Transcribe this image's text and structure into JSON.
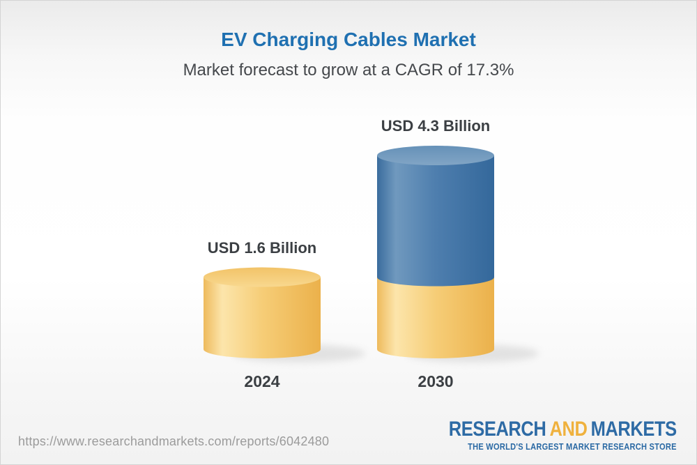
{
  "header": {
    "title": "EV Charging Cables Market",
    "subtitle": "Market forecast to grow at a CAGR of 17.3%"
  },
  "chart_data": {
    "type": "bar",
    "variant": "3d-cylinder",
    "title": "EV Charging Cables Market",
    "subtitle": "Market forecast to grow at a CAGR of 17.3%",
    "cagr_percent": 17.3,
    "unit": "USD Billion",
    "categories": [
      "2024",
      "2030"
    ],
    "values": [
      1.6,
      4.3
    ],
    "ylim": [
      0,
      4.3
    ],
    "grid": false,
    "legend": false,
    "bars": [
      {
        "category": "2024",
        "total": 1.6,
        "label": "USD 1.6 Billion",
        "segments": [
          {
            "name": "base",
            "value": 1.6,
            "palette": "gold",
            "color": "#F5C96E"
          }
        ]
      },
      {
        "category": "2030",
        "total": 4.3,
        "label": "USD 4.3 Billion",
        "segments": [
          {
            "name": "base",
            "value": 1.6,
            "palette": "gold",
            "color": "#F5C96E"
          },
          {
            "name": "growth",
            "value": 2.7,
            "palette": "blue",
            "color": "#4577A8"
          }
        ]
      }
    ]
  },
  "footer": {
    "url": "https://www.researchandmarkets.com/reports/6042480",
    "logo": {
      "word1": "RESEARCH",
      "word2": "AND",
      "word3": "MARKETS",
      "tagline": "THE WORLD'S LARGEST MARKET RESEARCH STORE"
    }
  },
  "colors": {
    "title_blue": "#1F70B1",
    "subtitle_gray": "#45484C",
    "label_dark": "#3B3F43",
    "bar_gold": "#F5C96E",
    "bar_blue": "#4577A8",
    "url_gray": "#9B9B9B",
    "logo_blue": "#2E6BA5",
    "logo_gold": "#EFB13D"
  }
}
